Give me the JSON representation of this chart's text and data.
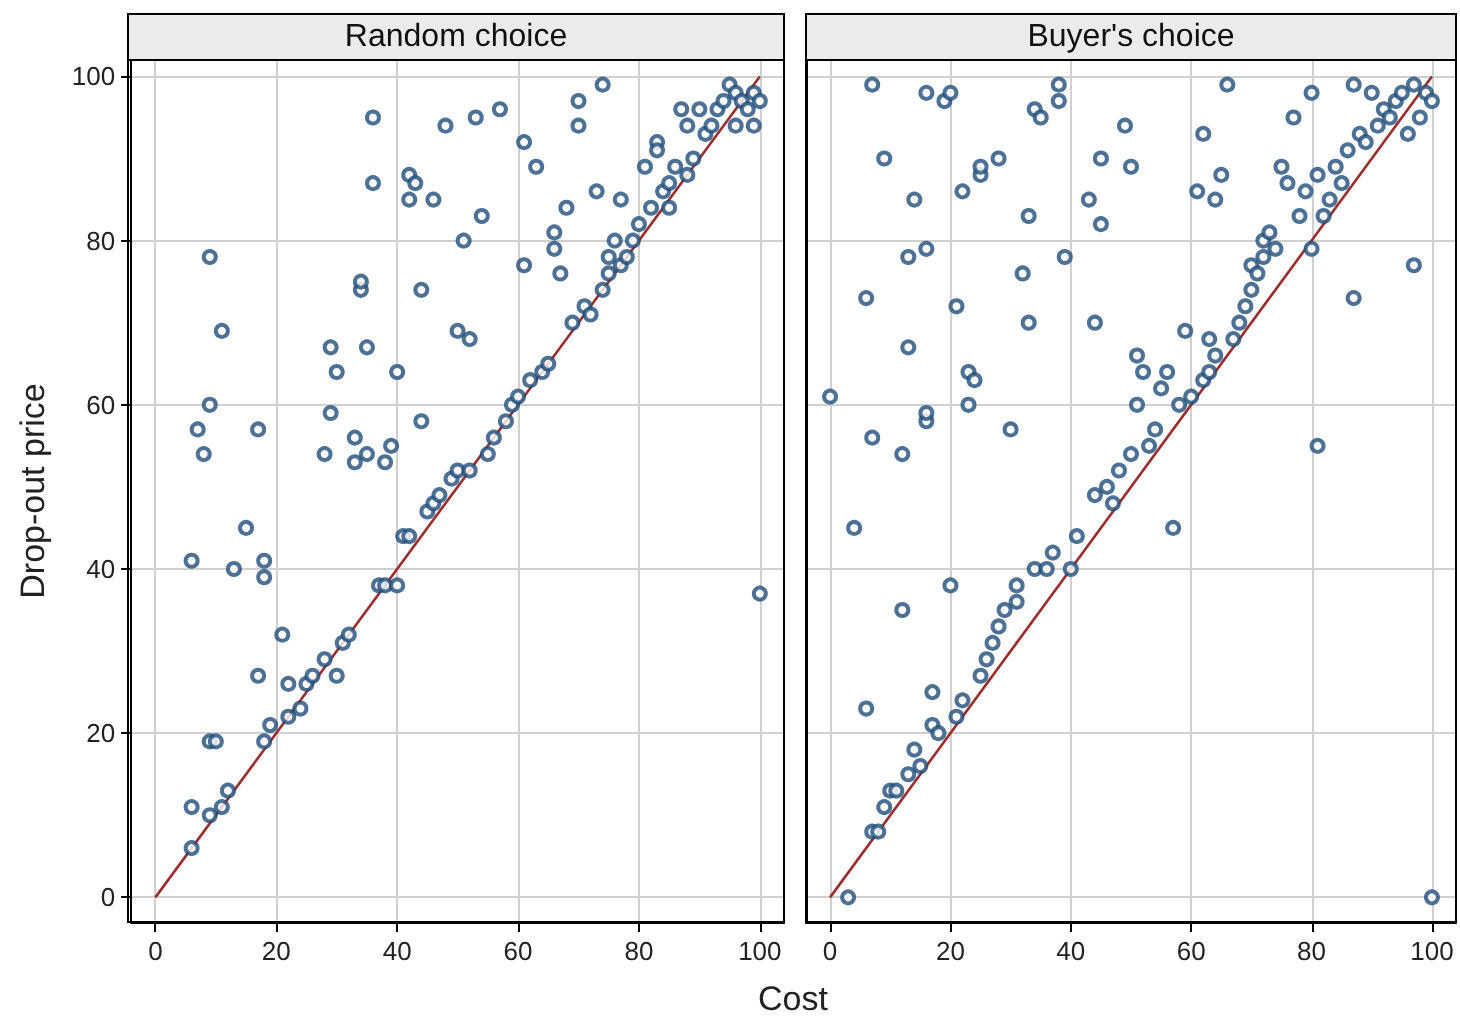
{
  "chart_data": [
    {
      "type": "scatter",
      "title": "Random choice",
      "xlabel": "Cost",
      "ylabel": "Drop-out price",
      "xlim": [
        -4,
        104
      ],
      "ylim": [
        -3,
        102
      ],
      "xticks": [
        0,
        20,
        40,
        60,
        80,
        100
      ],
      "yticks": [
        0,
        20,
        40,
        60,
        80,
        100
      ],
      "grid": true,
      "marker": "circle",
      "series": [
        {
          "color": "#1f4e79",
          "x": [
            6,
            6,
            6,
            7,
            8,
            9,
            9,
            9,
            10,
            9,
            11,
            11,
            12,
            13,
            15,
            17,
            17,
            18,
            18,
            18,
            19,
            21,
            22,
            22,
            24,
            25,
            26,
            28,
            28,
            29,
            29,
            30,
            30,
            31,
            32,
            33,
            33,
            34,
            34,
            35,
            35,
            36,
            36,
            37,
            38,
            38,
            39,
            40,
            40,
            41,
            42,
            42,
            42,
            43,
            44,
            44,
            45,
            46,
            46,
            47,
            48,
            49,
            50,
            50,
            51,
            52,
            52,
            53,
            54,
            55,
            56,
            57,
            58,
            59,
            60,
            61,
            61,
            62,
            63,
            64,
            65,
            66,
            66,
            67,
            68,
            69,
            70,
            70,
            71,
            72,
            73,
            74,
            74,
            75,
            75,
            76,
            77,
            77,
            78,
            79,
            80,
            81,
            82,
            83,
            83,
            84,
            85,
            85,
            86,
            87,
            88,
            88,
            89,
            90,
            91,
            92,
            93,
            94,
            95,
            96,
            96,
            97,
            98,
            99,
            99,
            100,
            100
          ],
          "values": [
            41,
            11,
            6,
            57,
            54,
            60,
            78,
            19,
            19,
            10,
            69,
            11,
            13,
            40,
            45,
            27,
            57,
            41,
            39,
            19,
            21,
            32,
            22,
            26,
            23,
            26,
            27,
            29,
            54,
            59,
            67,
            64,
            27,
            31,
            32,
            53,
            56,
            74,
            75,
            67,
            54,
            95,
            87,
            38,
            38,
            53,
            55,
            64,
            38,
            44,
            44,
            88,
            85,
            87,
            74,
            58,
            47,
            85,
            48,
            49,
            94,
            51,
            52,
            69,
            80,
            52,
            68,
            95,
            83,
            54,
            56,
            96,
            58,
            60,
            61,
            92,
            77,
            63,
            89,
            64,
            65,
            79,
            81,
            76,
            84,
            70,
            94,
            97,
            72,
            71,
            86,
            74,
            99,
            78,
            76,
            80,
            77,
            85,
            78,
            80,
            82,
            89,
            84,
            92,
            91,
            86,
            87,
            84,
            89,
            96,
            88,
            94,
            90,
            96,
            93,
            94,
            96,
            97,
            99,
            98,
            94,
            97,
            96,
            98,
            94,
            37,
            97
          ]
        },
        {
          "type": "line",
          "color": "#9b2c2c",
          "marker": "none",
          "x": [
            0,
            100
          ],
          "values": [
            0,
            100
          ]
        }
      ]
    },
    {
      "type": "scatter",
      "title": "Buyer's choice",
      "xlim": [
        -4,
        104
      ],
      "ylim": [
        -3,
        102
      ],
      "xticks": [
        0,
        20,
        40,
        60,
        80,
        100
      ],
      "yticks": [
        0,
        20,
        40,
        60,
        80,
        100
      ],
      "tick_labels": "x",
      "grid": true,
      "marker": "circle",
      "series": [
        {
          "color": "#1f4e79",
          "x": [
            0,
            3,
            4,
            6,
            6,
            7,
            7,
            7,
            8,
            9,
            9,
            10,
            11,
            12,
            12,
            13,
            13,
            13,
            14,
            14,
            15,
            16,
            16,
            16,
            16,
            17,
            17,
            18,
            19,
            20,
            20,
            21,
            21,
            22,
            22,
            23,
            23,
            24,
            25,
            25,
            25,
            26,
            27,
            28,
            28,
            29,
            30,
            31,
            31,
            32,
            33,
            33,
            34,
            34,
            35,
            36,
            37,
            38,
            38,
            39,
            40,
            41,
            43,
            44,
            44,
            45,
            45,
            46,
            47,
            48,
            49,
            50,
            50,
            51,
            51,
            52,
            53,
            54,
            55,
            56,
            57,
            58,
            59,
            60,
            61,
            62,
            62,
            63,
            63,
            64,
            64,
            65,
            66,
            67,
            68,
            69,
            70,
            70,
            71,
            72,
            72,
            73,
            74,
            75,
            76,
            77,
            78,
            79,
            80,
            80,
            81,
            81,
            82,
            83,
            84,
            85,
            86,
            87,
            87,
            88,
            89,
            90,
            91,
            92,
            93,
            94,
            95,
            96,
            97,
            97,
            98,
            99,
            100,
            100
          ],
          "values": [
            61,
            0,
            45,
            23,
            73,
            56,
            99,
            8,
            8,
            90,
            11,
            13,
            13,
            35,
            54,
            67,
            78,
            15,
            85,
            18,
            16,
            58,
            59,
            79,
            98,
            25,
            21,
            20,
            97,
            98,
            38,
            22,
            72,
            86,
            24,
            60,
            64,
            63,
            88,
            89,
            27,
            29,
            31,
            90,
            33,
            35,
            57,
            38,
            36,
            76,
            70,
            83,
            40,
            96,
            95,
            40,
            42,
            97,
            99,
            78,
            40,
            44,
            85,
            70,
            49,
            90,
            82,
            50,
            48,
            52,
            94,
            89,
            54,
            60,
            66,
            64,
            55,
            57,
            62,
            64,
            45,
            60,
            69,
            61,
            86,
            63,
            93,
            64,
            68,
            66,
            85,
            88,
            99,
            68,
            70,
            72,
            77,
            74,
            76,
            80,
            78,
            81,
            79,
            89,
            87,
            95,
            83,
            86,
            79,
            98,
            55,
            88,
            83,
            85,
            89,
            87,
            91,
            73,
            99,
            93,
            92,
            98,
            94,
            96,
            95,
            97,
            98,
            93,
            99,
            77,
            95,
            98,
            0,
            97
          ]
        },
        {
          "type": "line",
          "color": "#9b2c2c",
          "marker": "none",
          "x": [
            0,
            100
          ],
          "values": [
            0,
            100
          ]
        }
      ]
    }
  ]
}
